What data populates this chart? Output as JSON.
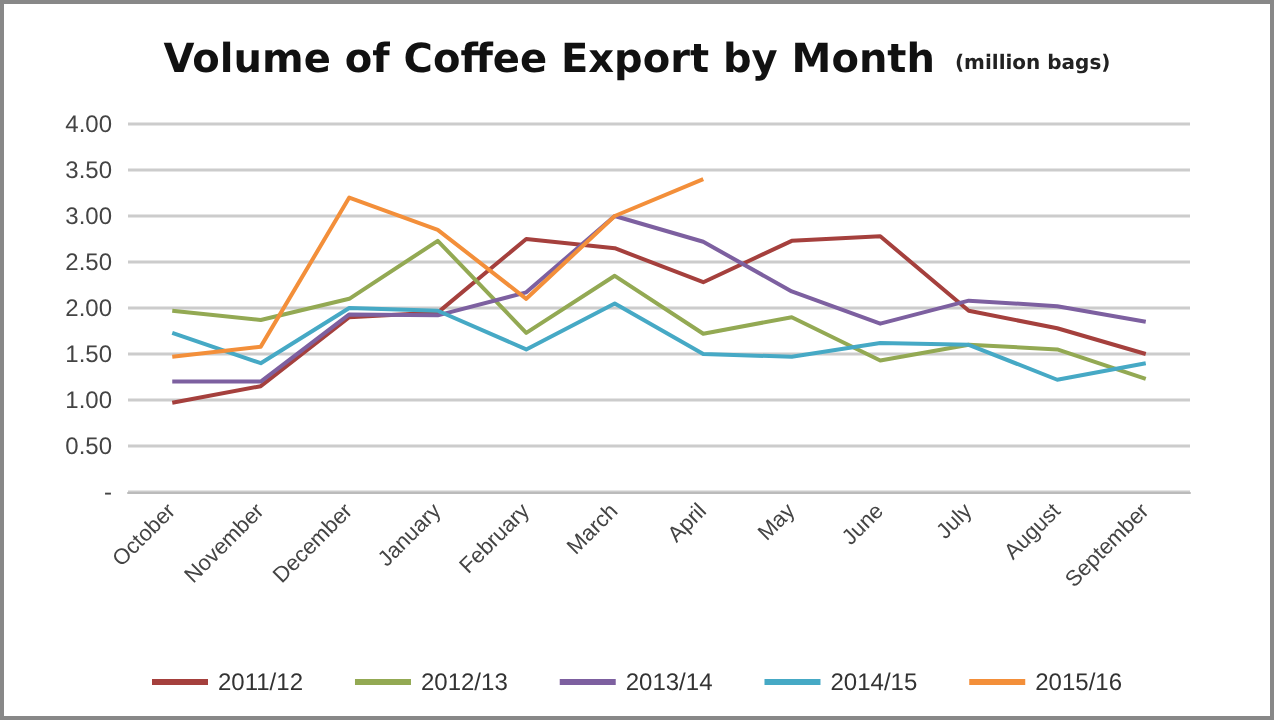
{
  "chart_data": {
    "type": "line",
    "title": "Volume of Coffee Export by Month",
    "subtitle": "(million bags)",
    "categories": [
      "October",
      "November",
      "December",
      "January",
      "February",
      "March",
      "April",
      "May",
      "June",
      "July",
      "August",
      "September"
    ],
    "series": [
      {
        "name": "2011/12",
        "color": "#a5403d",
        "values": [
          0.97,
          1.15,
          1.9,
          1.95,
          2.75,
          2.65,
          2.28,
          2.73,
          2.78,
          1.97,
          1.78,
          1.5
        ]
      },
      {
        "name": "2012/13",
        "color": "#93a953",
        "values": [
          1.97,
          1.87,
          2.1,
          2.73,
          1.73,
          2.35,
          1.72,
          1.9,
          1.43,
          1.6,
          1.55,
          1.23
        ]
      },
      {
        "name": "2013/14",
        "color": "#7d60a0",
        "values": [
          1.2,
          1.2,
          1.93,
          1.92,
          2.17,
          3.0,
          2.72,
          2.18,
          1.83,
          2.08,
          2.02,
          1.85
        ]
      },
      {
        "name": "2014/15",
        "color": "#46a9c5",
        "values": [
          1.73,
          1.4,
          2.0,
          1.97,
          1.55,
          2.05,
          1.5,
          1.47,
          1.62,
          1.6,
          1.22,
          1.4
        ]
      },
      {
        "name": "2015/16",
        "color": "#f38f3a",
        "values": [
          1.47,
          1.58,
          3.2,
          2.85,
          2.1,
          3.0,
          3.4,
          null,
          null,
          null,
          null,
          null
        ]
      }
    ],
    "ylim": [
      0,
      4
    ],
    "yticks": [
      {
        "value": 0,
        "label": "-"
      },
      {
        "value": 0.5,
        "label": "0.50"
      },
      {
        "value": 1,
        "label": "1.00"
      },
      {
        "value": 1.5,
        "label": "1.50"
      },
      {
        "value": 2,
        "label": "2.00"
      },
      {
        "value": 2.5,
        "label": "2.50"
      },
      {
        "value": 3,
        "label": "3.00"
      },
      {
        "value": 3.5,
        "label": "3.50"
      },
      {
        "value": 4,
        "label": "4.00"
      }
    ],
    "grid": "y",
    "legend": "bottom",
    "marker": "none",
    "line_style": "solid"
  }
}
